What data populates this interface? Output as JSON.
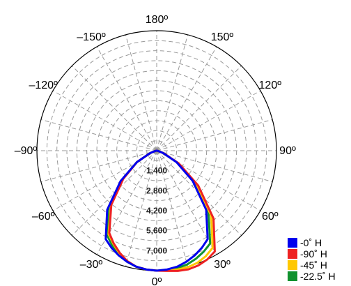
{
  "chart_data": {
    "type": "polar",
    "angle_labels": [
      "0º",
      "30º",
      "60º",
      "90º",
      "120º",
      "150º",
      "180º",
      "–150º",
      "–120º",
      "–90º",
      "–60º",
      "–30º"
    ],
    "angle_ticks_deg": [
      0,
      30,
      60,
      90,
      120,
      150,
      180,
      -150,
      -120,
      -90,
      -60,
      -30
    ],
    "radial_ticks": [
      1400,
      2800,
      4200,
      5600,
      7000
    ],
    "radial_tick_labels": [
      "1,400",
      "2,800",
      "4,200",
      "5,600",
      "7,000"
    ],
    "rmax": 8400,
    "grid": true,
    "legend_position": "bottom-right",
    "angles_deg": [
      -90,
      -80,
      -70,
      -60,
      -50,
      -40,
      -30,
      -25,
      -20,
      -15,
      -10,
      -5,
      0,
      5,
      10,
      15,
      20,
      25,
      30,
      40,
      50,
      60,
      70,
      80,
      90
    ],
    "series": [
      {
        "name": "-0˚ H",
        "color": "#0000ee",
        "values": [
          0,
          90,
          480,
          1600,
          3300,
          5400,
          7150,
          7500,
          7800,
          8050,
          8250,
          8350,
          8400,
          8350,
          8250,
          8050,
          7800,
          7500,
          7150,
          5400,
          3300,
          1600,
          480,
          90,
          0
        ]
      },
      {
        "name": "-90˚ H",
        "color": "#ee2222",
        "values": [
          0,
          90,
          480,
          1600,
          3050,
          4950,
          6650,
          7150,
          7600,
          8000,
          8250,
          8350,
          8400,
          8450,
          8550,
          8600,
          8550,
          8400,
          8150,
          6200,
          3800,
          1800,
          520,
          90,
          0
        ]
      },
      {
        "name": "-45˚ H",
        "color": "#ffc800",
        "values": [
          0,
          90,
          480,
          1600,
          3100,
          5000,
          6750,
          7200,
          7650,
          8000,
          8250,
          8350,
          8400,
          8400,
          8450,
          8450,
          8350,
          8150,
          7850,
          5950,
          3650,
          1720,
          500,
          90,
          0
        ]
      },
      {
        "name": "-22.5˚ H",
        "color": "#11922f",
        "values": [
          0,
          90,
          480,
          1600,
          3200,
          5150,
          6900,
          7350,
          7700,
          8050,
          8250,
          8350,
          8400,
          8400,
          8350,
          8250,
          8050,
          7800,
          7500,
          5650,
          3450,
          1650,
          490,
          90,
          0
        ]
      }
    ]
  }
}
